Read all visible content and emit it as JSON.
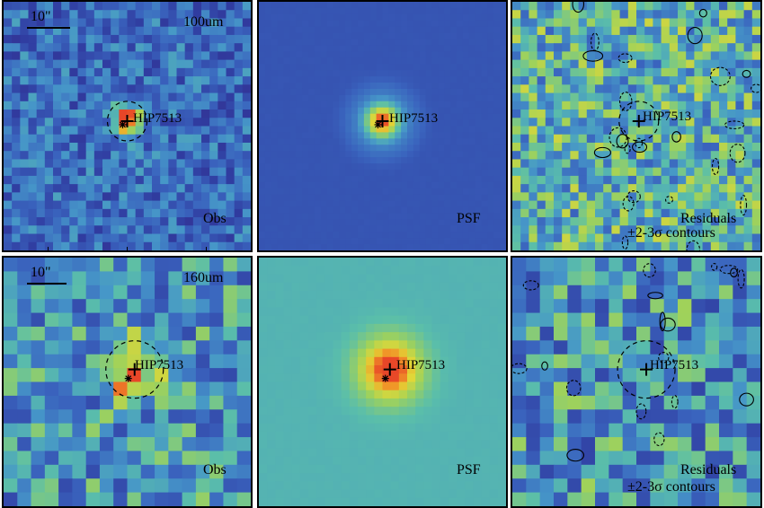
{
  "rows": [
    {
      "band": "100um",
      "scale": "10\"",
      "panels": [
        {
          "id": "obs",
          "corner": "Obs",
          "target": "HIP7513"
        },
        {
          "id": "psf",
          "corner": "PSF",
          "target": "HIP7513"
        },
        {
          "id": "res",
          "corner": "Residuals",
          "corner2": "±2-3σ contours",
          "target": "HIP7513"
        }
      ]
    },
    {
      "band": "160um",
      "scale": "10\"",
      "panels": [
        {
          "id": "obs",
          "corner": "Obs",
          "target": "HIP7513"
        },
        {
          "id": "psf",
          "corner": "PSF",
          "target": "HIP7513"
        },
        {
          "id": "res",
          "corner": "Residuals",
          "corner2": "±2-3σ contours",
          "target": "HIP7513"
        }
      ]
    }
  ],
  "colors": {
    "background_low": "#2f3c9a",
    "background_mid": "#4e8cc6",
    "background_high": "#c8d43e",
    "peak": "#e9522a",
    "frame": "#000000"
  }
}
